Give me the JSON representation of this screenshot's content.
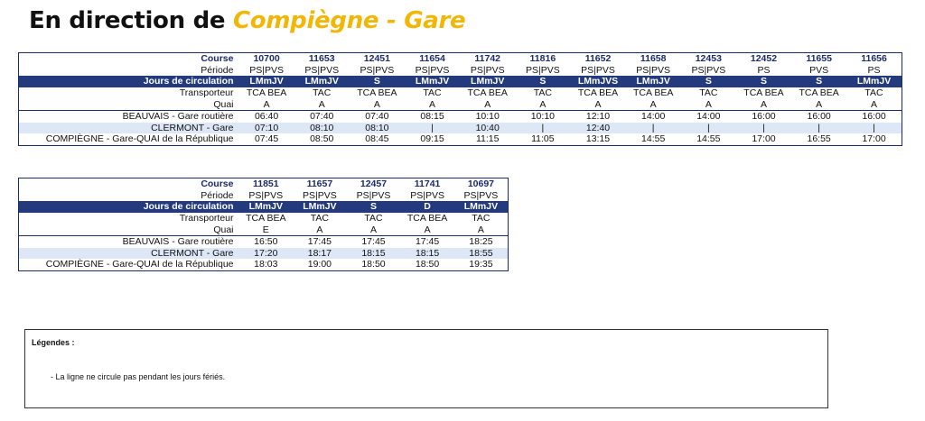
{
  "header": {
    "prefix": "En direction de",
    "destination": "Compiègne - Gare"
  },
  "labels": {
    "course": "Course",
    "periode": "Période",
    "jours": "Jours de circulation",
    "transporteur": "Transporteur",
    "quai": "Quai"
  },
  "table1": {
    "courses": [
      "10700",
      "11653",
      "12451",
      "11654",
      "11742",
      "11816",
      "11652",
      "11658",
      "12453",
      "12452",
      "11655",
      "11656"
    ],
    "periode": [
      "PS|PVS",
      "PS|PVS",
      "PS|PVS",
      "PS|PVS",
      "PS|PVS",
      "PS|PVS",
      "PS|PVS",
      "PS|PVS",
      "PS|PVS",
      "PS",
      "PVS",
      "PS"
    ],
    "jours": [
      "LMmJV",
      "LMmJV",
      "S",
      "LMmJV",
      "LMmJV",
      "S",
      "LMmJVS",
      "LMmJV",
      "S",
      "S",
      "S",
      "LMmJV"
    ],
    "transporteur": [
      "TCA BEA",
      "TAC",
      "TCA BEA",
      "TAC",
      "TCA BEA",
      "TAC",
      "TCA BEA",
      "TCA BEA",
      "TAC",
      "TCA BEA",
      "TCA BEA",
      "TAC"
    ],
    "quai": [
      "A",
      "A",
      "A",
      "A",
      "A",
      "A",
      "A",
      "A",
      "A",
      "A",
      "A",
      "A"
    ],
    "stops": [
      {
        "name": "BEAUVAIS - Gare routière",
        "times": [
          "06:40",
          "07:40",
          "07:40",
          "08:15",
          "10:10",
          "10:10",
          "12:10",
          "14:00",
          "14:00",
          "16:00",
          "16:00",
          "16:00"
        ]
      },
      {
        "name": "CLERMONT - Gare",
        "times": [
          "07:10",
          "08:10",
          "08:10",
          "|",
          "10:40",
          "|",
          "12:40",
          "|",
          "|",
          "|",
          "|",
          "|"
        ]
      },
      {
        "name": "COMPIÈGNE - Gare-QUAI de la République",
        "times": [
          "07:45",
          "08:50",
          "08:45",
          "09:15",
          "11:15",
          "11:05",
          "13:15",
          "14:55",
          "14:55",
          "17:00",
          "16:55",
          "17:00"
        ]
      }
    ]
  },
  "table2": {
    "courses": [
      "11851",
      "11657",
      "12457",
      "11741",
      "10697"
    ],
    "periode": [
      "PS|PVS",
      "PS|PVS",
      "PS|PVS",
      "PS|PVS",
      "PS|PVS"
    ],
    "jours": [
      "LMmJV",
      "LMmJV",
      "S",
      "D",
      "LMmJV"
    ],
    "transporteur": [
      "TCA BEA",
      "TAC",
      "TAC",
      "TCA BEA",
      "TAC"
    ],
    "quai": [
      "E",
      "A",
      "A",
      "A",
      "A"
    ],
    "stops": [
      {
        "name": "BEAUVAIS - Gare routière",
        "times": [
          "16:50",
          "17:45",
          "17:45",
          "17:45",
          "18:25"
        ]
      },
      {
        "name": "CLERMONT - Gare",
        "times": [
          "17:20",
          "18:17",
          "18:15",
          "18:15",
          "18:55"
        ]
      },
      {
        "name": "COMPIÈGNE - Gare-QUAI de la République",
        "times": [
          "18:03",
          "19:00",
          "18:50",
          "18:50",
          "19:35"
        ]
      }
    ]
  },
  "legend": {
    "title": "Légendes :",
    "item": "- La ligne ne circule pas pendant les jours fériés."
  }
}
